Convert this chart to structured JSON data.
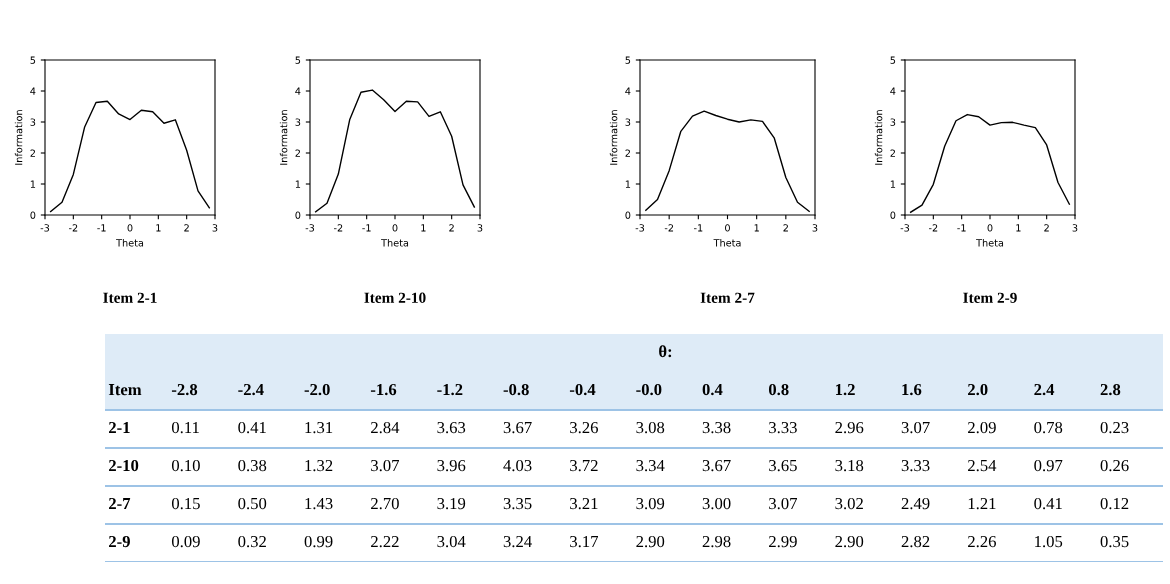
{
  "chart_data": [
    {
      "type": "line",
      "title": "Item 2-1",
      "xlabel": "Theta",
      "ylabel": "Information",
      "x": [
        -2.8,
        -2.4,
        -2.0,
        -1.6,
        -1.2,
        -0.8,
        -0.4,
        0.0,
        0.4,
        0.8,
        1.2,
        1.6,
        2.0,
        2.4,
        2.8
      ],
      "series": [
        {
          "color": "#000000",
          "values": [
            0.11,
            0.41,
            1.31,
            2.84,
            3.63,
            3.67,
            3.26,
            3.08,
            3.38,
            3.33,
            2.96,
            3.07,
            2.09,
            0.78,
            0.23
          ]
        }
      ],
      "xlim": [
        -3,
        3
      ],
      "xticks": [
        -3,
        -2,
        -1,
        0,
        1,
        2,
        3
      ],
      "ylim": [
        0,
        5
      ],
      "yticks": [
        0,
        1,
        2,
        3,
        4,
        5
      ],
      "grid": false
    },
    {
      "type": "line",
      "title": "Item 2-10",
      "xlabel": "Theta",
      "ylabel": "Information",
      "x": [
        -2.8,
        -2.4,
        -2.0,
        -1.6,
        -1.2,
        -0.8,
        -0.4,
        0.0,
        0.4,
        0.8,
        1.2,
        1.6,
        2.0,
        2.4,
        2.8
      ],
      "series": [
        {
          "color": "#000000",
          "values": [
            0.1,
            0.38,
            1.32,
            3.07,
            3.96,
            4.03,
            3.72,
            3.34,
            3.67,
            3.65,
            3.18,
            3.33,
            2.54,
            0.97,
            0.26
          ]
        }
      ],
      "xlim": [
        -3,
        3
      ],
      "xticks": [
        -3,
        -2,
        -1,
        0,
        1,
        2,
        3
      ],
      "ylim": [
        0,
        5
      ],
      "yticks": [
        0,
        1,
        2,
        3,
        4,
        5
      ],
      "grid": false
    },
    {
      "type": "line",
      "title": "Item 2-7",
      "xlabel": "Theta",
      "ylabel": "Information",
      "x": [
        -2.8,
        -2.4,
        -2.0,
        -1.6,
        -1.2,
        -0.8,
        -0.4,
        0.0,
        0.4,
        0.8,
        1.2,
        1.6,
        2.0,
        2.4,
        2.8
      ],
      "series": [
        {
          "color": "#000000",
          "values": [
            0.15,
            0.5,
            1.43,
            2.7,
            3.19,
            3.35,
            3.21,
            3.09,
            3.0,
            3.07,
            3.02,
            2.49,
            1.21,
            0.41,
            0.12
          ]
        }
      ],
      "xlim": [
        -3,
        3
      ],
      "xticks": [
        -3,
        -2,
        -1,
        0,
        1,
        2,
        3
      ],
      "ylim": [
        0,
        5
      ],
      "yticks": [
        0,
        1,
        2,
        3,
        4,
        5
      ],
      "grid": false
    },
    {
      "type": "line",
      "title": "Item 2-9",
      "xlabel": "Theta",
      "ylabel": "Information",
      "x": [
        -2.8,
        -2.4,
        -2.0,
        -1.6,
        -1.2,
        -0.8,
        -0.4,
        0.0,
        0.4,
        0.8,
        1.2,
        1.6,
        2.0,
        2.4,
        2.8
      ],
      "series": [
        {
          "color": "#000000",
          "values": [
            0.09,
            0.32,
            0.99,
            2.22,
            3.04,
            3.24,
            3.17,
            2.9,
            2.98,
            2.99,
            2.9,
            2.82,
            2.26,
            1.05,
            0.35
          ]
        }
      ],
      "xlim": [
        -3,
        3
      ],
      "xticks": [
        -3,
        -2,
        -1,
        0,
        1,
        2,
        3
      ],
      "ylim": [
        0,
        5
      ],
      "yticks": [
        0,
        1,
        2,
        3,
        4,
        5
      ],
      "grid": false
    },
    {
      "type": "heatmap",
      "title": "θ:",
      "ylabel": "Item",
      "categories": [
        "-2.8",
        "-2.4",
        "-2.0",
        "-1.6",
        "-1.2",
        "-0.8",
        "-0.4",
        "-0.0",
        "0.4",
        "0.8",
        "1.2",
        "1.6",
        "2.0",
        "2.4",
        "2.8"
      ],
      "y_categories": [
        "2-1",
        "2-10",
        "2-7",
        "2-9"
      ],
      "cells": [
        [
          0.11,
          0.41,
          1.31,
          2.84,
          3.63,
          3.67,
          3.26,
          3.08,
          3.38,
          3.33,
          2.96,
          3.07,
          2.09,
          0.78,
          0.23
        ],
        [
          0.1,
          0.38,
          1.32,
          3.07,
          3.96,
          4.03,
          3.72,
          3.34,
          3.67,
          3.65,
          3.18,
          3.33,
          2.54,
          0.97,
          0.26
        ],
        [
          0.15,
          0.5,
          1.43,
          2.7,
          3.19,
          3.35,
          3.21,
          3.09,
          3.0,
          3.07,
          3.02,
          2.49,
          1.21,
          0.41,
          0.12
        ],
        [
          0.09,
          0.32,
          0.99,
          2.22,
          3.04,
          3.24,
          3.17,
          2.9,
          2.98,
          2.99,
          2.9,
          2.82,
          2.26,
          1.05,
          0.35
        ]
      ],
      "cell_labels": [
        [
          "0.11",
          "0.41",
          "1.31",
          "2.84",
          "3.63",
          "3.67",
          "3.26",
          "3.08",
          "3.38",
          "3.33",
          "2.96",
          "3.07",
          "2.09",
          "0.78",
          "0.23"
        ],
        [
          "0.10",
          "0.38",
          "1.32",
          "3.07",
          "3.96",
          "4.03",
          "3.72",
          "3.34",
          "3.67",
          "3.65",
          "3.18",
          "3.33",
          "2.54",
          "0.97",
          "0.26"
        ],
        [
          "0.15",
          "0.50",
          "1.43",
          "2.70",
          "3.19",
          "3.35",
          "3.21",
          "3.09",
          "3.00",
          "3.07",
          "3.02",
          "2.49",
          "1.21",
          "0.41",
          "0.12"
        ],
        [
          "0.09",
          "0.32",
          "0.99",
          "2.22",
          "3.04",
          "3.24",
          "3.17",
          "2.90",
          "2.98",
          "2.99",
          "2.90",
          "2.82",
          "2.26",
          "1.05",
          "0.35"
        ]
      ],
      "data_labels": true
    }
  ]
}
